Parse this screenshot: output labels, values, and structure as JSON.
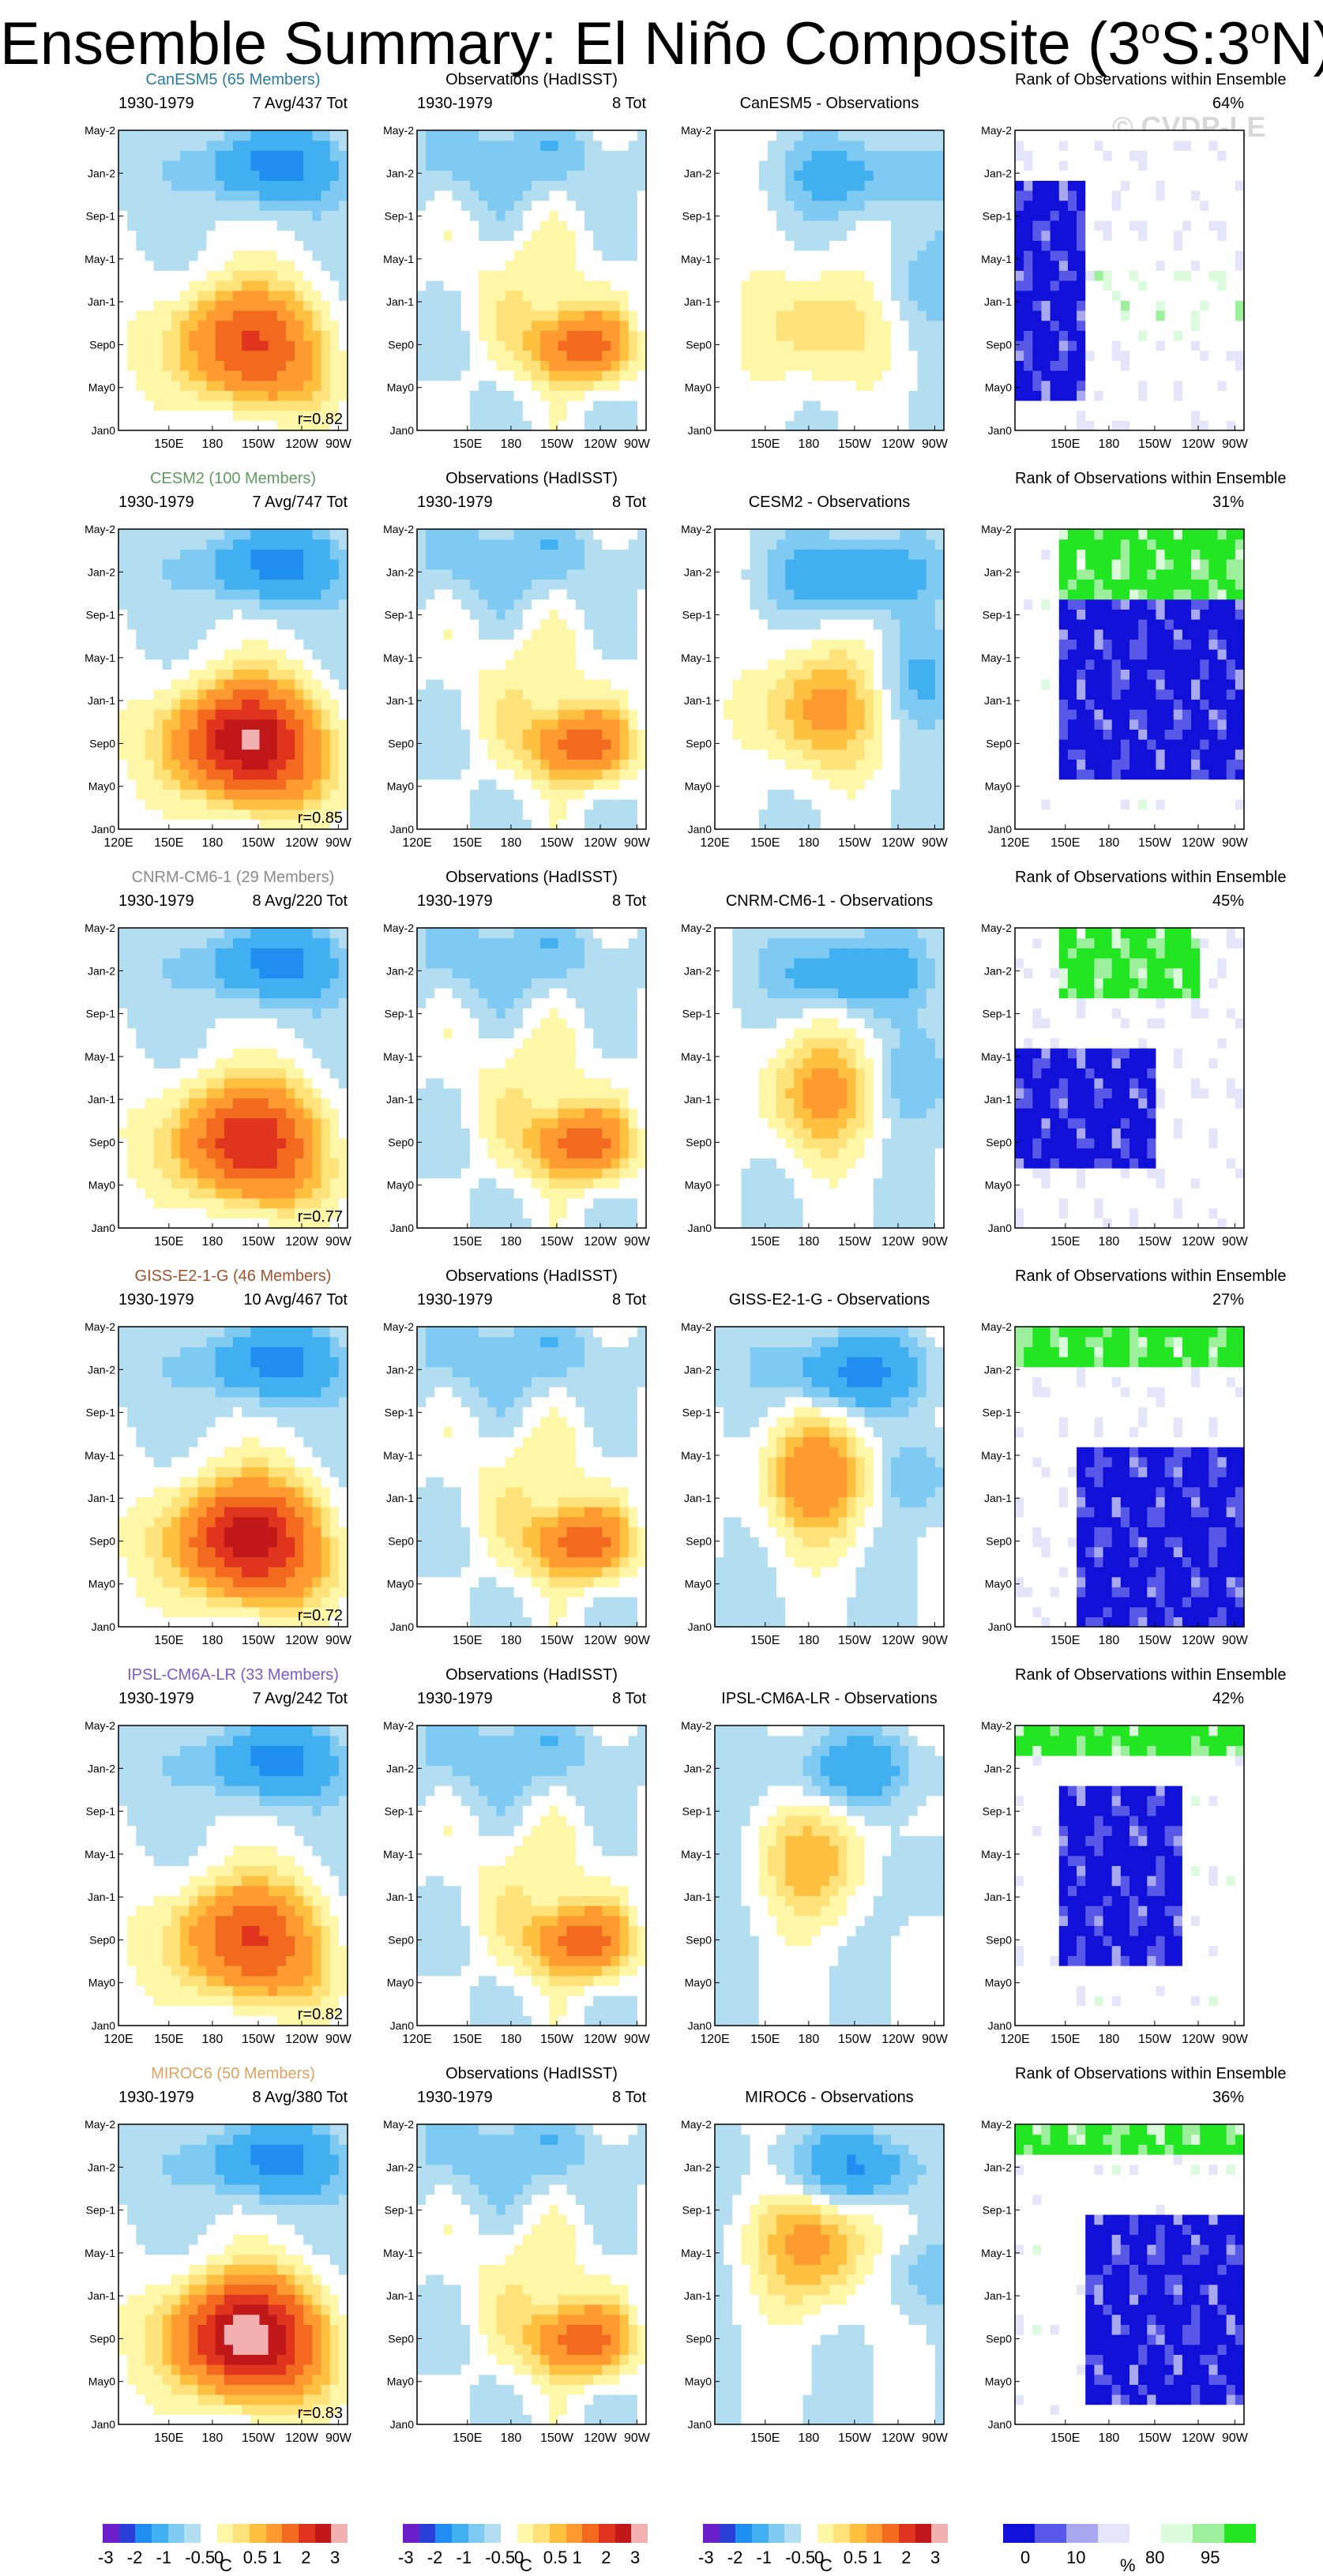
{
  "title": {
    "main": "Ensemble Summary: El Niño Composite (3",
    "sup1": "o",
    "mid": "S:3",
    "sup2": "o",
    "end": "N)"
  },
  "watermark": "© CVDP-LE",
  "common": {
    "period": "1930-1979",
    "obs_title": "Observations (HadISST)",
    "obs_count": "8 Tot",
    "rank_title": "Rank of Observations within Ensemble"
  },
  "colors": {
    "sst": [
      "#6a1fc8",
      "#2a3fd8",
      "#1e8ef0",
      "#41b0f0",
      "#7fcaf2",
      "#b3def2",
      "#ffffff",
      "#fff7a8",
      "#ffe27a",
      "#ffc040",
      "#ff9a30",
      "#f36a1e",
      "#e1341e",
      "#c01818",
      "#f2b0b0"
    ],
    "rank": [
      "#1010d8",
      "#5858e8",
      "#a8a8f0",
      "#e4e4fa",
      "#ffffff",
      "#dcfadc",
      "#9cf09c",
      "#22e622"
    ]
  },
  "chart_data": [
    {
      "type": "heatmap",
      "model": "CanESM5",
      "members": "CanESM5 (65 Members)",
      "name_color": "#2a7ca8",
      "avg": "7 Avg/437 Tot",
      "diff_title": "CanESM5 - Observations",
      "rank_pct": "64%",
      "r": "r=0.82",
      "model_peak": 2,
      "diff_scale": 0.8,
      "rank_mode": 0,
      "x_ticks": [
        "150E",
        "180",
        "150W",
        "120W",
        "90W"
      ],
      "y_ticks": [
        "May-2",
        "Jan-2",
        "Sep-1",
        "May-1",
        "Jan-1",
        "Sep0",
        "May0",
        "Jan0"
      ]
    },
    {
      "type": "heatmap",
      "model": "CESM2",
      "members": "CESM2 (100 Members)",
      "name_color": "#5e9c5e",
      "avg": "7 Avg/747 Tot",
      "diff_title": "CESM2 - Observations",
      "rank_pct": "31%",
      "r": "r=0.85",
      "model_peak": 3,
      "diff_scale": 1.2,
      "rank_mode": 1,
      "x_ticks": [
        "120E",
        "150E",
        "180",
        "150W",
        "120W",
        "90W"
      ],
      "y_ticks": [
        "May-2",
        "Jan-2",
        "Sep-1",
        "May-1",
        "Jan-1",
        "Sep0",
        "May0",
        "Jan0"
      ]
    },
    {
      "type": "heatmap",
      "model": "CNRM-CM6-1",
      "members": "CNRM-CM6-1 (29 Members)",
      "name_color": "#8a8a8a",
      "avg": "8 Avg/220 Tot",
      "diff_title": "CNRM-CM6-1 - Observations",
      "rank_pct": "45%",
      "r": "r=0.77",
      "model_peak": 2.4,
      "diff_scale": 1.1,
      "rank_mode": 2,
      "x_ticks": [
        "150E",
        "180",
        "150W",
        "120W",
        "90W"
      ],
      "y_ticks": [
        "May-2",
        "Jan-2",
        "Sep-1",
        "May-1",
        "Jan-1",
        "Sep0",
        "May0",
        "Jan0"
      ]
    },
    {
      "type": "heatmap",
      "model": "GISS-E2-1-G",
      "members": "GISS-E2-1-G (46 Members)",
      "name_color": "#a0522d",
      "avg": "10 Avg/467 Tot",
      "diff_title": "GISS-E2-1-G - Observations",
      "rank_pct": "27%",
      "r": "r=0.72",
      "model_peak": 2.8,
      "diff_scale": 1.3,
      "rank_mode": 3,
      "x_ticks": [
        "150E",
        "180",
        "150W",
        "120W",
        "90W"
      ],
      "y_ticks": [
        "May-2",
        "Jan-2",
        "Sep-1",
        "May-1",
        "Jan-1",
        "Sep0",
        "May0",
        "Jan0"
      ]
    },
    {
      "type": "heatmap",
      "model": "IPSL-CM6A-LR",
      "members": "IPSL-CM6A-LR (33 Members)",
      "name_color": "#7a5ad0",
      "avg": "7 Avg/242 Tot",
      "diff_title": "IPSL-CM6A-LR - Observations",
      "rank_pct": "42%",
      "r": "r=0.82",
      "model_peak": 2,
      "diff_scale": 0.9,
      "rank_mode": 4,
      "x_ticks": [
        "120E",
        "150E",
        "180",
        "150W",
        "120W",
        "90W"
      ],
      "y_ticks": [
        "May-2",
        "Jan-2",
        "Sep-1",
        "May-1",
        "Jan-1",
        "Sep0",
        "May0",
        "Jan0"
      ]
    },
    {
      "type": "heatmap",
      "model": "MIROC6",
      "members": "MIROC6 (50 Members)",
      "name_color": "#e0a060",
      "avg": "8 Avg/380 Tot",
      "diff_title": "MIROC6 - Observations",
      "rank_pct": "36%",
      "r": "r=0.83",
      "model_peak": 3.3,
      "diff_scale": 1.2,
      "rank_mode": 5,
      "x_ticks": [
        "150E",
        "180",
        "150W",
        "120W",
        "90W"
      ],
      "y_ticks": [
        "May-2",
        "Jan-2",
        "Sep-1",
        "May-1",
        "Jan-1",
        "Sep0",
        "May0",
        "Jan0"
      ]
    }
  ],
  "colorbar_sst": {
    "labels": [
      "-3",
      "-2",
      "-1",
      "-0.5",
      "0",
      "0.5",
      "1",
      "2",
      "3"
    ],
    "unit": "C"
  },
  "colorbar_rank": {
    "labels": [
      "0",
      "10",
      "80",
      "95"
    ],
    "unit": "%"
  }
}
